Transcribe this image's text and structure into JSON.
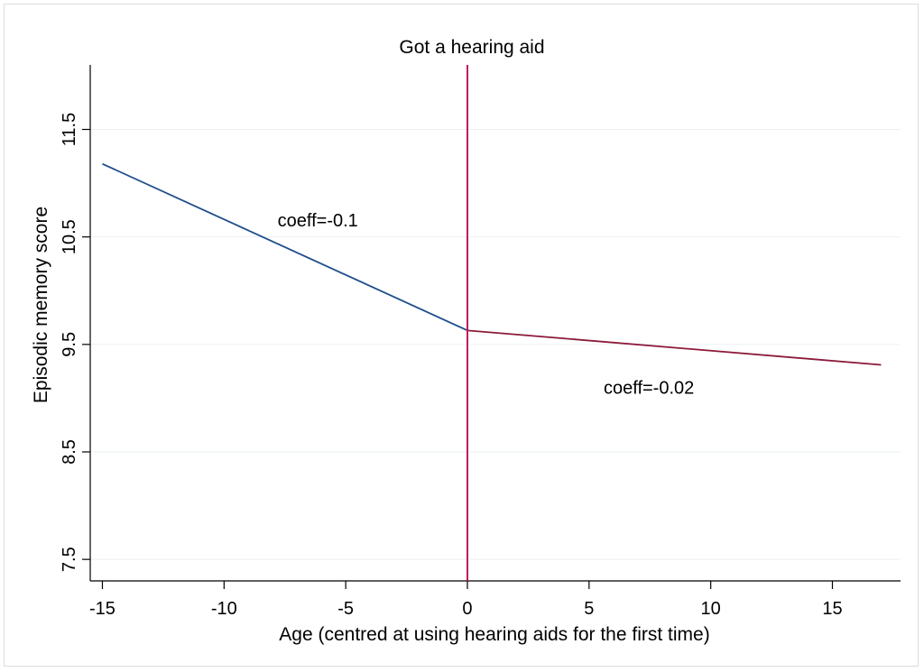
{
  "chart_data": {
    "type": "line",
    "xlabel": "Age (centred at using hearing aids for the first time)",
    "ylabel": "Episodic memory score",
    "xlim": [
      -15.5,
      17.8
    ],
    "ylim": [
      7.3,
      12.1
    ],
    "x_ticks": [
      -15,
      -10,
      -5,
      0,
      5,
      10,
      15
    ],
    "x_tick_labels": [
      "-15",
      "-10",
      "-5",
      "0",
      "5",
      "10",
      "15"
    ],
    "y_ticks": [
      7.5,
      8.5,
      9.5,
      10.5,
      11.5
    ],
    "y_tick_labels": [
      "7.5",
      "8.5",
      "9.5",
      "10.5",
      "11.5"
    ],
    "grid": "horizontal",
    "series": [
      {
        "x": [
          -15,
          0
        ],
        "y": [
          11.18,
          9.63
        ],
        "color": "#1f4e8c"
      },
      {
        "x": [
          0,
          17
        ],
        "y": [
          9.63,
          9.31
        ],
        "color": "#8b1a3a"
      }
    ],
    "reference_line": {
      "x": 0,
      "label": "Got a hearing aid",
      "color": "#c2185b"
    },
    "annotations": [
      {
        "text": "coeff=-0.1",
        "x": -7.8,
        "y": 10.6
      },
      {
        "text": "coeff=-0.02",
        "x": 5.6,
        "y": 9.04
      }
    ]
  }
}
